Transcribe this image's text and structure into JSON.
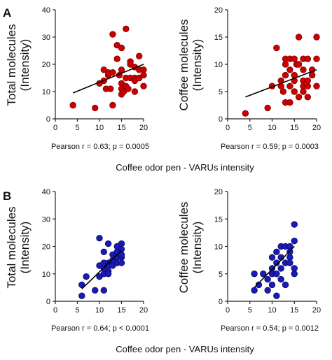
{
  "panels": [
    {
      "letter": "A",
      "xlabel": "Coffee odor pen - VARUs intensity",
      "charts": [
        {
          "type": "scatter",
          "ylabel_line1": "Total molecules",
          "ylabel_line2": "(Intensity)",
          "xlim": [
            0,
            20
          ],
          "ylim": [
            0,
            40
          ],
          "xticks": [
            0,
            5,
            10,
            15,
            20
          ],
          "yticks": [
            0,
            10,
            20,
            30,
            40
          ],
          "stats_line": "Pearson r = 0.63; p = 0.0005",
          "marker_color": "#cc0000",
          "marker_edge": "#7a0000",
          "fit": {
            "x": [
              4,
              20
            ],
            "y": [
              9.5,
              20
            ]
          },
          "points": [
            [
              4,
              5
            ],
            [
              9,
              4
            ],
            [
              10,
              13
            ],
            [
              11,
              18
            ],
            [
              11,
              14
            ],
            [
              11.5,
              11
            ],
            [
              12,
              16
            ],
            [
              12,
              17
            ],
            [
              12.5,
              11
            ],
            [
              13,
              5
            ],
            [
              13,
              31
            ],
            [
              13,
              17
            ],
            [
              14,
              22
            ],
            [
              14,
              27
            ],
            [
              14.5,
              16
            ],
            [
              15,
              26
            ],
            [
              15,
              18
            ],
            [
              15,
              9
            ],
            [
              15,
              13
            ],
            [
              15,
              11
            ],
            [
              15.5,
              10
            ],
            [
              16,
              33
            ],
            [
              16,
              15
            ],
            [
              16,
              12
            ],
            [
              16.5,
              11
            ],
            [
              17,
              21
            ],
            [
              17,
              15
            ],
            [
              17,
              20
            ],
            [
              18,
              19
            ],
            [
              18,
              15
            ],
            [
              18,
              14
            ],
            [
              18,
              10
            ],
            [
              19,
              23
            ],
            [
              19,
              18
            ],
            [
              19,
              15
            ],
            [
              20,
              18
            ],
            [
              20,
              16
            ],
            [
              20,
              12
            ]
          ]
        },
        {
          "type": "scatter",
          "ylabel_line1": "Coffee molecules",
          "ylabel_line2": "(Intensity)",
          "xlim": [
            0,
            20
          ],
          "ylim": [
            0,
            20
          ],
          "xticks": [
            0,
            5,
            10,
            15,
            20
          ],
          "yticks": [
            0,
            5,
            10,
            15,
            20
          ],
          "stats_line": "Pearson r = 0.59; p = 0.0003",
          "marker_color": "#cc0000",
          "marker_edge": "#7a0000",
          "fit": {
            "x": [
              4,
              20
            ],
            "y": [
              4,
              9
            ]
          },
          "points": [
            [
              4,
              1
            ],
            [
              9,
              2
            ],
            [
              10,
              6
            ],
            [
              11,
              13
            ],
            [
              12,
              7
            ],
            [
              12,
              6
            ],
            [
              12.5,
              5
            ],
            [
              13,
              11
            ],
            [
              13,
              10
            ],
            [
              13,
              3
            ],
            [
              13,
              8
            ],
            [
              14,
              9
            ],
            [
              14,
              11
            ],
            [
              14,
              6
            ],
            [
              14,
              3
            ],
            [
              15,
              8
            ],
            [
              15,
              11
            ],
            [
              15,
              7
            ],
            [
              15,
              5
            ],
            [
              15.5,
              10
            ],
            [
              16,
              15
            ],
            [
              16,
              10
            ],
            [
              16,
              4
            ],
            [
              17,
              7
            ],
            [
              17,
              11
            ],
            [
              17,
              9
            ],
            [
              17,
              6
            ],
            [
              17,
              5
            ],
            [
              18,
              11
            ],
            [
              18,
              7
            ],
            [
              18,
              6
            ],
            [
              18,
              4
            ],
            [
              19,
              9
            ],
            [
              19,
              8
            ],
            [
              20,
              15
            ],
            [
              20,
              11
            ],
            [
              20,
              6
            ]
          ]
        }
      ]
    },
    {
      "letter": "B",
      "xlabel": "Coffee odor pen - VARUs intensity",
      "charts": [
        {
          "type": "scatter",
          "ylabel_line1": "Total molecules",
          "ylabel_line2": "(Intensity)",
          "xlim": [
            0,
            20
          ],
          "ylim": [
            0,
            40
          ],
          "xticks": [
            0,
            5,
            10,
            15,
            20
          ],
          "yticks": [
            0,
            10,
            20,
            30,
            40
          ],
          "stats_line": "Pearson r = 0.64; p < 0.0001",
          "marker_color": "#1a1ab8",
          "marker_edge": "#0a0a5a",
          "fit": {
            "x": [
              6,
              15
            ],
            "y": [
              4.5,
              18.5
            ]
          },
          "points": [
            [
              6,
              2
            ],
            [
              6,
              6
            ],
            [
              7,
              9
            ],
            [
              9,
              4
            ],
            [
              10,
              13
            ],
            [
              10,
              9
            ],
            [
              10,
              23
            ],
            [
              11,
              12
            ],
            [
              11,
              4
            ],
            [
              11,
              14
            ],
            [
              11,
              18
            ],
            [
              11,
              10
            ],
            [
              12,
              14
            ],
            [
              12,
              11
            ],
            [
              12,
              21
            ],
            [
              12,
              13
            ],
            [
              12,
              10
            ],
            [
              13,
              17
            ],
            [
              13,
              13
            ],
            [
              13,
              15
            ],
            [
              14,
              18
            ],
            [
              14,
              16
            ],
            [
              14,
              14
            ],
            [
              14,
              20
            ],
            [
              15,
              21
            ],
            [
              15,
              19
            ],
            [
              15,
              16
            ],
            [
              15,
              14
            ],
            [
              15,
              17
            ]
          ]
        },
        {
          "type": "scatter",
          "ylabel_line1": "Coffee molecules",
          "ylabel_line2": "(Intensity)",
          "xlim": [
            0,
            20
          ],
          "ylim": [
            0,
            20
          ],
          "xticks": [
            0,
            5,
            10,
            15,
            20
          ],
          "yticks": [
            0,
            5,
            10,
            15,
            20
          ],
          "stats_line": "Pearson r = 0.54; p = 0.0012",
          "marker_color": "#1a1ab8",
          "marker_edge": "#0a0a5a",
          "fit": {
            "x": [
              6,
              15
            ],
            "y": [
              2.5,
              10
            ]
          },
          "points": [
            [
              6,
              2
            ],
            [
              6,
              5
            ],
            [
              7,
              3
            ],
            [
              8,
              5
            ],
            [
              9,
              2
            ],
            [
              9,
              4
            ],
            [
              10,
              8
            ],
            [
              10,
              6
            ],
            [
              10,
              5
            ],
            [
              10,
              3
            ],
            [
              11,
              9
            ],
            [
              11,
              7
            ],
            [
              11,
              5
            ],
            [
              11,
              1
            ],
            [
              12,
              10
            ],
            [
              12,
              8
            ],
            [
              12,
              6
            ],
            [
              12,
              4
            ],
            [
              13,
              10
            ],
            [
              13,
              7
            ],
            [
              13,
              3
            ],
            [
              14,
              10
            ],
            [
              14,
              9
            ],
            [
              14,
              8
            ],
            [
              14,
              7
            ],
            [
              15,
              14
            ],
            [
              15,
              11
            ],
            [
              15,
              6
            ],
            [
              15,
              5
            ]
          ]
        }
      ]
    }
  ]
}
